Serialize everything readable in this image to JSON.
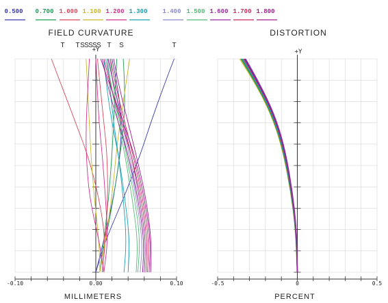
{
  "legend": [
    {
      "label": "0.500",
      "color": "#3a3aa8"
    },
    {
      "label": "0.700",
      "color": "#1f9a55"
    },
    {
      "label": "1.000",
      "color": "#d8485a"
    },
    {
      "label": "1.100",
      "color": "#c8b62a"
    },
    {
      "label": "1.200",
      "color": "#d0308c"
    },
    {
      "label": "1.300",
      "color": "#1aa0b0"
    },
    {
      "label": "1.400",
      "color": "#8a8ac8"
    },
    {
      "label": "1.500",
      "color": "#55b878"
    },
    {
      "label": "1.600",
      "color": "#9a2aa0"
    },
    {
      "label": "1.700",
      "color": "#c8285a"
    },
    {
      "label": "1.800",
      "color": "#a01c8c"
    }
  ],
  "chart_data": [
    {
      "type": "line",
      "title": "FIELD CURVATURE",
      "subtitle_marks": [
        "T",
        "T",
        "S",
        "S",
        "S",
        "S",
        "S",
        "T",
        "S",
        "T"
      ],
      "y_axis_label": "+Y",
      "xlabel": "MILLIMETERS",
      "xlim": [
        -0.1,
        0.1
      ],
      "ylim": [
        0,
        1
      ],
      "x_tick_labels": [
        "-0.10",
        "0.00",
        "0.10"
      ],
      "grid": true,
      "series": [
        {
          "legend_index": 0,
          "kind": "T",
          "x": [
            0.0,
            0.012,
            0.035,
            0.055,
            0.068,
            0.082,
            0.097
          ],
          "y": [
            0,
            0.15,
            0.35,
            0.55,
            0.7,
            0.85,
            1.0
          ]
        },
        {
          "legend_index": 0,
          "kind": "S",
          "x": [
            0.0,
            0.01,
            0.022,
            0.03,
            0.032,
            0.028,
            0.02
          ],
          "y": [
            0,
            0.15,
            0.35,
            0.55,
            0.7,
            0.85,
            1.0
          ]
        },
        {
          "legend_index": 1,
          "kind": "T",
          "x": [
            0.005,
            0.012,
            0.022,
            0.03,
            0.035,
            0.036,
            0.034
          ],
          "y": [
            0,
            0.15,
            0.35,
            0.55,
            0.7,
            0.85,
            1.0
          ]
        },
        {
          "legend_index": 1,
          "kind": "S",
          "x": [
            0.005,
            0.01,
            0.016,
            0.02,
            0.022,
            0.024,
            0.026
          ],
          "y": [
            0,
            0.15,
            0.35,
            0.55,
            0.7,
            0.85,
            1.0
          ]
        },
        {
          "legend_index": 2,
          "kind": "T",
          "x": [
            0.008,
            0.012,
            0.004,
            -0.01,
            -0.025,
            -0.04,
            -0.055
          ],
          "y": [
            0,
            0.15,
            0.35,
            0.55,
            0.7,
            0.85,
            1.0
          ]
        },
        {
          "legend_index": 2,
          "kind": "S",
          "x": [
            0.008,
            0.012,
            0.015,
            0.014,
            0.01,
            0.006,
            0.002
          ],
          "y": [
            0,
            0.15,
            0.35,
            0.55,
            0.7,
            0.85,
            1.0
          ]
        },
        {
          "legend_index": 3,
          "kind": "T",
          "x": [
            0.005,
            0.012,
            0.02,
            0.025,
            0.03,
            0.036,
            0.042
          ],
          "y": [
            0,
            0.15,
            0.35,
            0.55,
            0.7,
            0.85,
            1.0
          ]
        },
        {
          "legend_index": 3,
          "kind": "S",
          "x": [
            0.005,
            0.004,
            -0.002,
            -0.006,
            -0.008,
            -0.01,
            -0.012
          ],
          "y": [
            0,
            0.15,
            0.35,
            0.55,
            0.7,
            0.85,
            1.0
          ]
        },
        {
          "legend_index": 4,
          "kind": "T",
          "x": [
            0.01,
            0.004,
            -0.008,
            -0.012,
            -0.012,
            -0.01,
            -0.008
          ],
          "y": [
            0,
            0.15,
            0.35,
            0.55,
            0.7,
            0.85,
            1.0
          ]
        },
        {
          "legend_index": 4,
          "kind": "S",
          "x": [
            0.01,
            0.015,
            0.012,
            0.008,
            0.004,
            0.002,
            0.0
          ],
          "y": [
            0,
            0.15,
            0.35,
            0.55,
            0.7,
            0.85,
            1.0
          ]
        },
        {
          "legend_index": 5,
          "kind": "T",
          "x": [
            0.035,
            0.038,
            0.034,
            0.028,
            0.022,
            0.018,
            0.014
          ],
          "y": [
            0,
            0.15,
            0.35,
            0.55,
            0.7,
            0.85,
            1.0
          ]
        },
        {
          "legend_index": 5,
          "kind": "S",
          "x": [
            0.04,
            0.042,
            0.036,
            0.028,
            0.02,
            0.014,
            0.01
          ],
          "y": [
            0,
            0.15,
            0.35,
            0.55,
            0.7,
            0.85,
            1.0
          ]
        },
        {
          "legend_index": 6,
          "kind": "T",
          "x": [
            0.055,
            0.058,
            0.05,
            0.04,
            0.03,
            0.02,
            0.012
          ],
          "y": [
            0,
            0.15,
            0.35,
            0.55,
            0.7,
            0.85,
            1.0
          ]
        },
        {
          "legend_index": 6,
          "kind": "S",
          "x": [
            0.058,
            0.06,
            0.052,
            0.042,
            0.032,
            0.024,
            0.016
          ],
          "y": [
            0,
            0.15,
            0.35,
            0.55,
            0.7,
            0.85,
            1.0
          ]
        },
        {
          "legend_index": 7,
          "kind": "T",
          "x": [
            0.05,
            0.052,
            0.045,
            0.036,
            0.028,
            0.02,
            0.014
          ],
          "y": [
            0,
            0.15,
            0.35,
            0.55,
            0.7,
            0.85,
            1.0
          ]
        },
        {
          "legend_index": 7,
          "kind": "S",
          "x": [
            0.052,
            0.055,
            0.048,
            0.038,
            0.03,
            0.022,
            0.018
          ],
          "y": [
            0,
            0.15,
            0.35,
            0.55,
            0.7,
            0.85,
            1.0
          ]
        },
        {
          "legend_index": 8,
          "kind": "T",
          "x": [
            0.058,
            0.06,
            0.052,
            0.04,
            0.028,
            0.016,
            0.008
          ],
          "y": [
            0,
            0.15,
            0.35,
            0.55,
            0.7,
            0.85,
            1.0
          ]
        },
        {
          "legend_index": 8,
          "kind": "S",
          "x": [
            0.06,
            0.062,
            0.054,
            0.044,
            0.034,
            0.024,
            0.015
          ],
          "y": [
            0,
            0.15,
            0.35,
            0.55,
            0.7,
            0.85,
            1.0
          ]
        },
        {
          "legend_index": 9,
          "kind": "T",
          "x": [
            0.062,
            0.064,
            0.056,
            0.044,
            0.032,
            0.02,
            0.01
          ],
          "y": [
            0,
            0.15,
            0.35,
            0.55,
            0.7,
            0.85,
            1.0
          ]
        },
        {
          "legend_index": 9,
          "kind": "S",
          "x": [
            0.064,
            0.066,
            0.058,
            0.046,
            0.036,
            0.026,
            0.018
          ],
          "y": [
            0,
            0.15,
            0.35,
            0.55,
            0.7,
            0.85,
            1.0
          ]
        },
        {
          "legend_index": 10,
          "kind": "T",
          "x": [
            0.066,
            0.068,
            0.06,
            0.048,
            0.034,
            0.02,
            0.006
          ],
          "y": [
            0,
            0.15,
            0.35,
            0.55,
            0.7,
            0.85,
            1.0
          ]
        },
        {
          "legend_index": 10,
          "kind": "S",
          "x": [
            0.068,
            0.069,
            0.062,
            0.05,
            0.04,
            0.03,
            0.022
          ],
          "y": [
            0,
            0.15,
            0.35,
            0.55,
            0.7,
            0.85,
            1.0
          ]
        }
      ]
    },
    {
      "type": "line",
      "title": "DISTORTION",
      "y_axis_label": "+Y",
      "xlabel": "PERCENT",
      "xlim": [
        -0.5,
        0.5
      ],
      "ylim": [
        0,
        1
      ],
      "x_tick_labels": [
        "-0.5",
        "0",
        "0.5"
      ],
      "grid": true,
      "series": [
        {
          "legend_index": 3,
          "x": [
            0,
            -0.01,
            -0.045,
            -0.1,
            -0.17,
            -0.26,
            -0.36
          ],
          "y": [
            0,
            0.2,
            0.4,
            0.6,
            0.75,
            0.88,
            1.0
          ]
        },
        {
          "legend_index": 1,
          "x": [
            0,
            -0.009,
            -0.043,
            -0.097,
            -0.166,
            -0.255,
            -0.352
          ],
          "y": [
            0,
            0.2,
            0.4,
            0.6,
            0.75,
            0.88,
            1.0
          ]
        },
        {
          "legend_index": 5,
          "x": [
            0,
            -0.008,
            -0.041,
            -0.094,
            -0.162,
            -0.25,
            -0.345
          ],
          "y": [
            0,
            0.2,
            0.4,
            0.6,
            0.75,
            0.88,
            1.0
          ]
        },
        {
          "legend_index": 2,
          "x": [
            0,
            -0.007,
            -0.039,
            -0.091,
            -0.158,
            -0.245,
            -0.338
          ],
          "y": [
            0,
            0.2,
            0.4,
            0.6,
            0.75,
            0.88,
            1.0
          ]
        },
        {
          "legend_index": 0,
          "x": [
            0,
            -0.006,
            -0.037,
            -0.088,
            -0.154,
            -0.24,
            -0.331
          ],
          "y": [
            0,
            0.2,
            0.4,
            0.6,
            0.75,
            0.88,
            1.0
          ]
        },
        {
          "legend_index": 8,
          "x": [
            0,
            -0.005,
            -0.035,
            -0.085,
            -0.15,
            -0.235,
            -0.325
          ],
          "y": [
            0,
            0.2,
            0.4,
            0.6,
            0.75,
            0.88,
            1.0
          ]
        }
      ]
    }
  ]
}
